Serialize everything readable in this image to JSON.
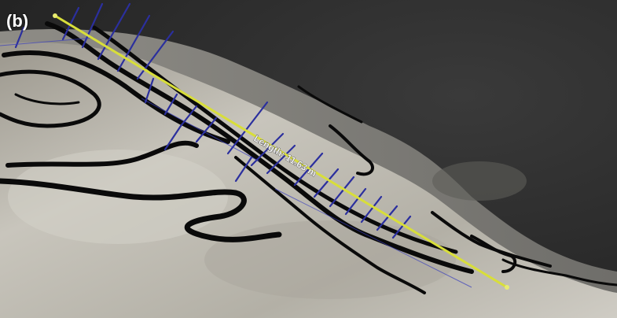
{
  "panel_label": "(b)",
  "measurement": {
    "label": "Length: 11.63 m"
  },
  "colors": {
    "background": "#2e2e2e",
    "rock": "#b9b6ad",
    "contour_lines": "#0a0a0a",
    "normal_vectors": "#2b2f9e",
    "measure_line": "#d8de3a"
  }
}
